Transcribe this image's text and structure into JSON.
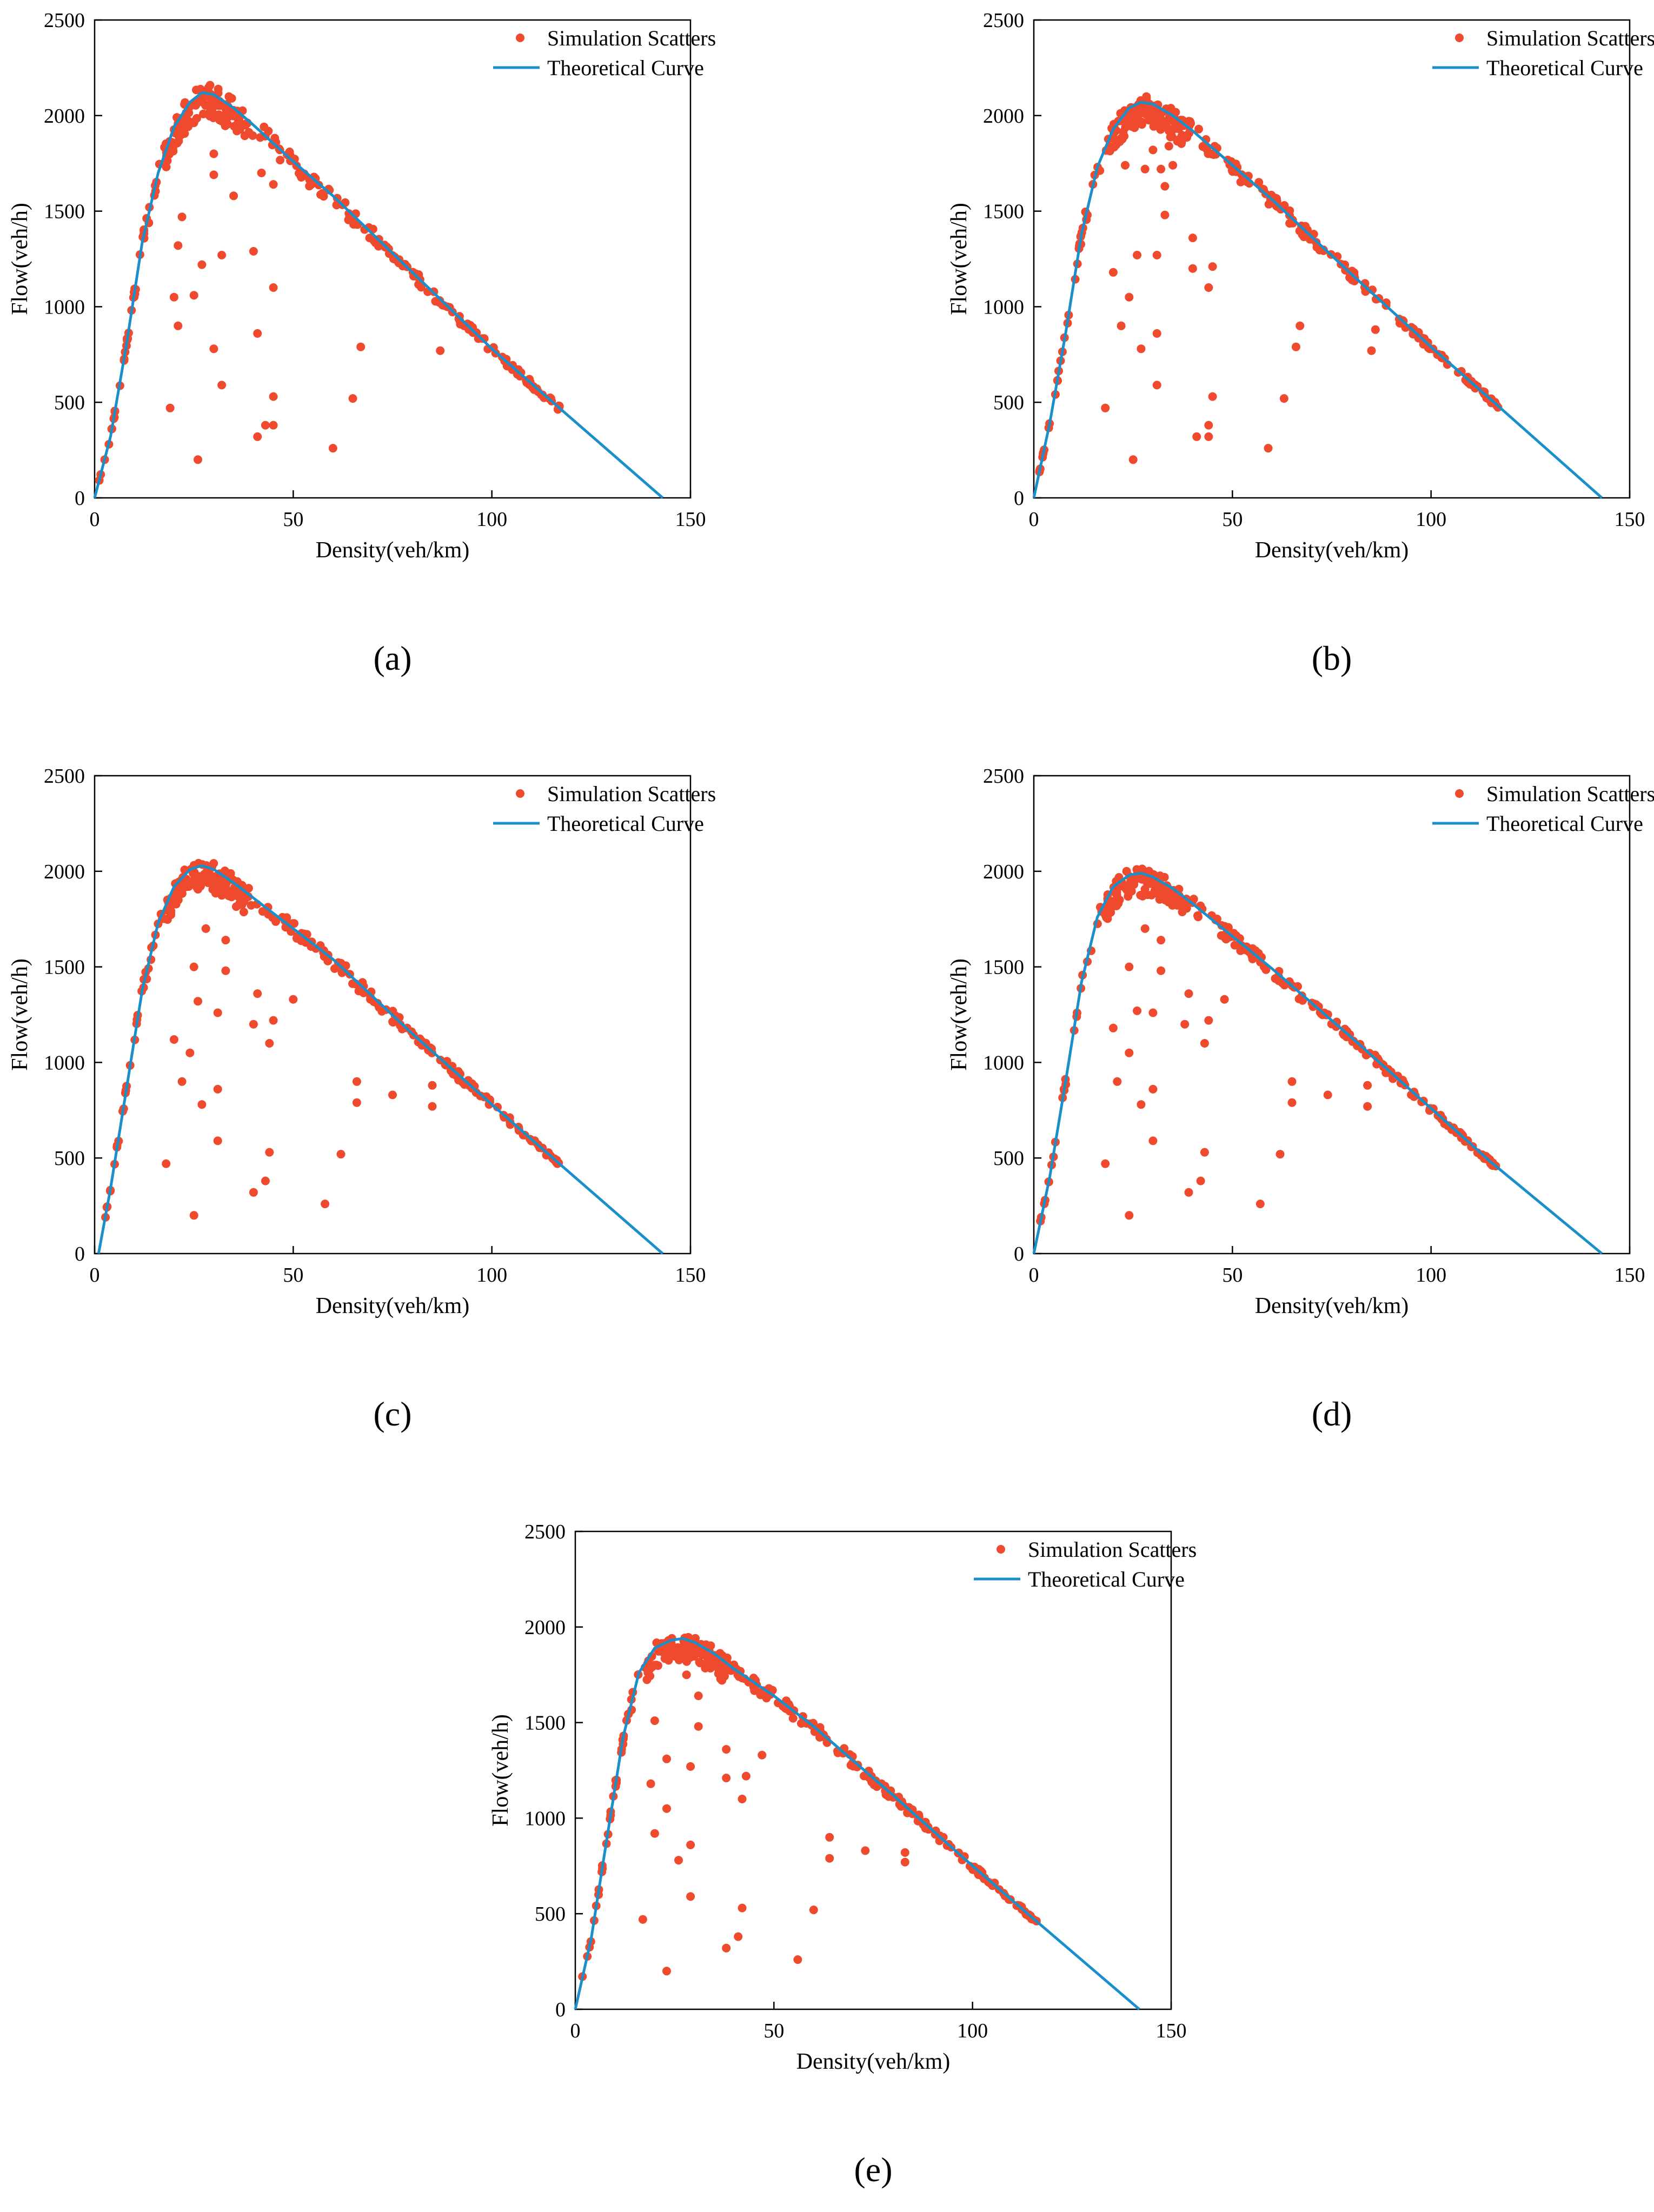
{
  "colors": {
    "scatter": "#f04a2e",
    "curve": "#1b8fc9",
    "axis": "#000000",
    "background": "#ffffff"
  },
  "chart_data": [
    {
      "panel_label": "(a)",
      "type": "scatter",
      "xlabel": "Density(veh/km)",
      "ylabel": "Flow(veh/h)",
      "xlim": [
        0,
        150
      ],
      "ylim": [
        0,
        2500
      ],
      "xticks": [
        "0",
        "50",
        "100",
        "150"
      ],
      "yticks": [
        "0",
        "500",
        "1000",
        "1500",
        "2000",
        "2500"
      ],
      "legend": [
        "Simulation Scatters",
        "Theoretical Curve"
      ],
      "series": [
        {
          "name": "Simulation Scatters",
          "kind": "scatter",
          "outliers": [
            [
              26,
              200
            ],
            [
              19,
              470
            ],
            [
              32,
              590
            ],
            [
              30,
              780
            ],
            [
              21,
              900
            ],
            [
              20,
              1050
            ],
            [
              25,
              1060
            ],
            [
              27,
              1220
            ],
            [
              21,
              1320
            ],
            [
              32,
              1270
            ],
            [
              22,
              1470
            ],
            [
              30,
              1690
            ],
            [
              30,
              1800
            ],
            [
              35,
              1580
            ],
            [
              40,
              1290
            ],
            [
              41,
              860
            ],
            [
              41,
              320
            ],
            [
              43,
              380
            ],
            [
              45,
              380
            ],
            [
              45,
              530
            ],
            [
              45,
              1100
            ],
            [
              42,
              1700
            ],
            [
              45,
              1640
            ],
            [
              60,
              260
            ],
            [
              65,
              520
            ],
            [
              67,
              790
            ],
            [
              87,
              770
            ]
          ],
          "noise_scale": 0.028
        },
        {
          "name": "Theoretical Curve",
          "kind": "line",
          "points": [
            [
              0,
              0
            ],
            [
              4,
              320
            ],
            [
              8,
              800
            ],
            [
              12,
              1340
            ],
            [
              16,
              1700
            ],
            [
              20,
              1940
            ],
            [
              24,
              2070
            ],
            [
              27,
              2120
            ],
            [
              30,
              2110
            ],
            [
              35,
              2040
            ],
            [
              40,
              1950
            ],
            [
              50,
              1760
            ],
            [
              60,
              1580
            ],
            [
              80,
              1180
            ],
            [
              100,
              780
            ],
            [
              117,
              470
            ],
            [
              143,
              0
            ]
          ]
        }
      ]
    },
    {
      "panel_label": "(b)",
      "type": "scatter",
      "xlabel": "Density(veh/km)",
      "ylabel": "Flow(veh/h)",
      "xlim": [
        0,
        150
      ],
      "ylim": [
        0,
        2500
      ],
      "xticks": [
        "0",
        "50",
        "100",
        "150"
      ],
      "yticks": [
        "0",
        "500",
        "1000",
        "1500",
        "2000",
        "2500"
      ],
      "legend": [
        "Simulation Scatters",
        "Theoretical Curve"
      ],
      "series": [
        {
          "name": "Simulation Scatters",
          "kind": "scatter",
          "outliers": [
            [
              25,
              200
            ],
            [
              18,
              470
            ],
            [
              31,
              590
            ],
            [
              27,
              780
            ],
            [
              22,
              900
            ],
            [
              24,
              1050
            ],
            [
              26,
              1270
            ],
            [
              20,
              1180
            ],
            [
              28,
              1720
            ],
            [
              31,
              1270
            ],
            [
              31,
              860
            ],
            [
              33,
              1480
            ],
            [
              33,
              1630
            ],
            [
              40,
              1200
            ],
            [
              40,
              1360
            ],
            [
              44,
              1100
            ],
            [
              45,
              1210
            ],
            [
              44,
              320
            ],
            [
              44,
              380
            ],
            [
              45,
              530
            ],
            [
              41,
              320
            ],
            [
              59,
              260
            ],
            [
              63,
              520
            ],
            [
              66,
              790
            ],
            [
              67,
              900
            ],
            [
              85,
              770
            ],
            [
              86,
              880
            ],
            [
              23,
              1740
            ],
            [
              32,
              1720
            ],
            [
              35,
              1740
            ],
            [
              30,
              1820
            ],
            [
              34,
              1840
            ]
          ],
          "noise_scale": 0.025
        },
        {
          "name": "Theoretical Curve",
          "kind": "line",
          "points": [
            [
              0,
              0
            ],
            [
              4,
              390
            ],
            [
              8,
              860
            ],
            [
              12,
              1380
            ],
            [
              16,
              1730
            ],
            [
              20,
              1930
            ],
            [
              24,
              2040
            ],
            [
              27,
              2070
            ],
            [
              30,
              2060
            ],
            [
              35,
              2000
            ],
            [
              40,
              1920
            ],
            [
              50,
              1740
            ],
            [
              60,
              1560
            ],
            [
              80,
              1170
            ],
            [
              100,
              790
            ],
            [
              118,
              460
            ],
            [
              143,
              0
            ]
          ]
        }
      ]
    },
    {
      "panel_label": "(c)",
      "type": "scatter",
      "xlabel": "Density(veh/km)",
      "ylabel": "Flow(veh/h)",
      "xlim": [
        0,
        150
      ],
      "ylim": [
        0,
        2500
      ],
      "xticks": [
        "0",
        "50",
        "100",
        "150"
      ],
      "yticks": [
        "0",
        "500",
        "1000",
        "1500",
        "2000",
        "2500"
      ],
      "legend": [
        "Simulation Scatters",
        "Theoretical Curve"
      ],
      "series": [
        {
          "name": "Simulation Scatters",
          "kind": "scatter",
          "outliers": [
            [
              25,
              200
            ],
            [
              18,
              470
            ],
            [
              31,
              590
            ],
            [
              27,
              780
            ],
            [
              22,
              900
            ],
            [
              24,
              1050
            ],
            [
              26,
              1320
            ],
            [
              20,
              1120
            ],
            [
              28,
              1700
            ],
            [
              31,
              1260
            ],
            [
              31,
              860
            ],
            [
              33,
              1480
            ],
            [
              33,
              1640
            ],
            [
              40,
              1200
            ],
            [
              41,
              1360
            ],
            [
              44,
              1100
            ],
            [
              45,
              1220
            ],
            [
              40,
              320
            ],
            [
              43,
              380
            ],
            [
              44,
              530
            ],
            [
              58,
              260
            ],
            [
              62,
              520
            ],
            [
              66,
              790
            ],
            [
              66,
              900
            ],
            [
              75,
              830
            ],
            [
              85,
              770
            ],
            [
              85,
              880
            ],
            [
              25,
              1500
            ],
            [
              50,
              1330
            ]
          ],
          "noise_scale": 0.025
        },
        {
          "name": "Theoretical Curve",
          "kind": "line",
          "points": [
            [
              1,
              0
            ],
            [
              4,
              340
            ],
            [
              8,
              860
            ],
            [
              12,
              1380
            ],
            [
              16,
              1730
            ],
            [
              20,
              1920
            ],
            [
              24,
              2010
            ],
            [
              27,
              2030
            ],
            [
              30,
              2010
            ],
            [
              35,
              1940
            ],
            [
              40,
              1860
            ],
            [
              50,
              1700
            ],
            [
              60,
              1540
            ],
            [
              80,
              1150
            ],
            [
              100,
              780
            ],
            [
              117,
              470
            ],
            [
              143,
              0
            ]
          ]
        }
      ]
    },
    {
      "panel_label": "(d)",
      "type": "scatter",
      "xlabel": "Density(veh/km)",
      "ylabel": "Flow(veh/h)",
      "xlim": [
        0,
        150
      ],
      "ylim": [
        0,
        2500
      ],
      "xticks": [
        "0",
        "50",
        "100",
        "150"
      ],
      "yticks": [
        "0",
        "500",
        "1000",
        "1500",
        "2000",
        "2500"
      ],
      "legend": [
        "Simulation Scatters",
        "Theoretical Curve"
      ],
      "series": [
        {
          "name": "Simulation Scatters",
          "kind": "scatter",
          "outliers": [
            [
              24,
              200
            ],
            [
              18,
              470
            ],
            [
              30,
              590
            ],
            [
              27,
              780
            ],
            [
              21,
              900
            ],
            [
              24,
              1050
            ],
            [
              26,
              1270
            ],
            [
              20,
              1180
            ],
            [
              28,
              1700
            ],
            [
              30,
              1260
            ],
            [
              30,
              860
            ],
            [
              32,
              1480
            ],
            [
              32,
              1640
            ],
            [
              38,
              1200
            ],
            [
              39,
              1360
            ],
            [
              43,
              1100
            ],
            [
              44,
              1220
            ],
            [
              39,
              320
            ],
            [
              42,
              380
            ],
            [
              43,
              530
            ],
            [
              57,
              260
            ],
            [
              62,
              520
            ],
            [
              65,
              790
            ],
            [
              65,
              900
            ],
            [
              74,
              830
            ],
            [
              84,
              770
            ],
            [
              84,
              880
            ],
            [
              24,
              1500
            ],
            [
              48,
              1330
            ]
          ],
          "noise_scale": 0.022
        },
        {
          "name": "Theoretical Curve",
          "kind": "line",
          "points": [
            [
              0,
              0
            ],
            [
              4,
              400
            ],
            [
              8,
              900
            ],
            [
              12,
              1420
            ],
            [
              16,
              1760
            ],
            [
              20,
              1920
            ],
            [
              24,
              1980
            ],
            [
              27,
              1990
            ],
            [
              30,
              1970
            ],
            [
              35,
              1910
            ],
            [
              40,
              1830
            ],
            [
              50,
              1660
            ],
            [
              60,
              1490
            ],
            [
              80,
              1130
            ],
            [
              100,
              760
            ],
            [
              115,
              480
            ],
            [
              143,
              0
            ]
          ]
        }
      ]
    },
    {
      "panel_label": "(e)",
      "type": "scatter",
      "xlabel": "Density(veh/km)",
      "ylabel": "Flow(veh/h)",
      "xlim": [
        0,
        150
      ],
      "ylim": [
        0,
        2500
      ],
      "xticks": [
        "0",
        "50",
        "100",
        "150"
      ],
      "yticks": [
        "0",
        "500",
        "1000",
        "1500",
        "2000",
        "2500"
      ],
      "legend": [
        "Simulation Scatters",
        "Theoretical Curve"
      ],
      "series": [
        {
          "name": "Simulation Scatters",
          "kind": "scatter",
          "outliers": [
            [
              23,
              200
            ],
            [
              17,
              470
            ],
            [
              29,
              590
            ],
            [
              26,
              780
            ],
            [
              20,
              920
            ],
            [
              23,
              1050
            ],
            [
              23,
              1310
            ],
            [
              19,
              1180
            ],
            [
              28,
              1750
            ],
            [
              29,
              1270
            ],
            [
              29,
              860
            ],
            [
              31,
              1480
            ],
            [
              31,
              1640
            ],
            [
              38,
              1210
            ],
            [
              38,
              1360
            ],
            [
              42,
              1100
            ],
            [
              43,
              1220
            ],
            [
              38,
              320
            ],
            [
              41,
              380
            ],
            [
              42,
              530
            ],
            [
              56,
              260
            ],
            [
              60,
              520
            ],
            [
              64,
              790
            ],
            [
              64,
              900
            ],
            [
              73,
              830
            ],
            [
              83,
              770
            ],
            [
              83,
              820
            ],
            [
              20,
              1510
            ],
            [
              47,
              1330
            ]
          ],
          "noise_scale": 0.022
        },
        {
          "name": "Theoretical Curve",
          "kind": "line",
          "points": [
            [
              0,
              0
            ],
            [
              4,
              370
            ],
            [
              8,
              900
            ],
            [
              12,
              1420
            ],
            [
              16,
              1760
            ],
            [
              20,
              1890
            ],
            [
              24,
              1930
            ],
            [
              27,
              1940
            ],
            [
              30,
              1920
            ],
            [
              35,
              1860
            ],
            [
              40,
              1780
            ],
            [
              50,
              1640
            ],
            [
              60,
              1480
            ],
            [
              80,
              1120
            ],
            [
              100,
              750
            ],
            [
              115,
              480
            ],
            [
              142,
              0
            ]
          ]
        }
      ]
    }
  ]
}
